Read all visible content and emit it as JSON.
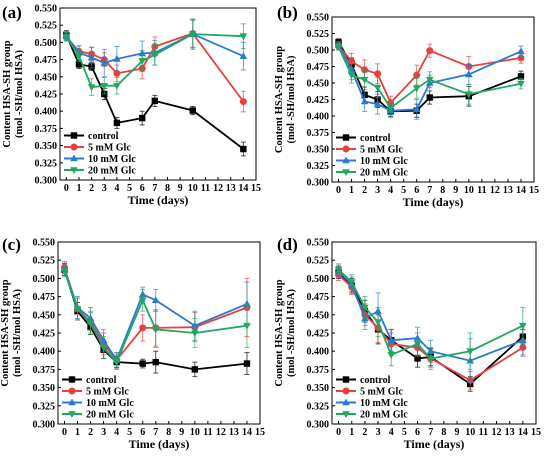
{
  "figure": {
    "background": "#ffffff"
  },
  "series_styles": {
    "control": {
      "color": "#000000",
      "marker": "square"
    },
    "5 mM Glc": {
      "color": "#e8413c",
      "marker": "circle"
    },
    "10 mM Glc": {
      "color": "#2a7ad1",
      "marker": "triangle-up"
    },
    "20 mM Glc": {
      "color": "#1fa85f",
      "marker": "triangle-down"
    }
  },
  "chart_data": [
    {
      "panel_label": "(a)",
      "type": "line",
      "xlabel": "Time (days)",
      "ylabel_lines": [
        "Content HSA-SH group",
        "(mol -SH/mol HSA)"
      ],
      "xlim": [
        -0.5,
        15
      ],
      "ylim": [
        0.3,
        0.55
      ],
      "xticks": [
        0,
        1,
        2,
        3,
        4,
        5,
        6,
        7,
        8,
        9,
        10,
        11,
        12,
        13,
        14,
        15
      ],
      "yticks": [
        0.3,
        0.325,
        0.35,
        0.375,
        0.4,
        0.425,
        0.45,
        0.475,
        0.5,
        0.525,
        0.55
      ],
      "ytick_labels": [
        "0.300",
        "0.325",
        "0.350",
        "0.375",
        "0.400",
        "0.425",
        "0.450",
        "0.475",
        "0.500",
        "0.525",
        "0.550"
      ],
      "legend": [
        "control",
        "5 mM Glc",
        "10 mM Glc",
        "20 mM Glc"
      ],
      "legend_position": "bottom-left",
      "series": [
        {
          "name": "control",
          "x": [
            0,
            1,
            2,
            3,
            4,
            6,
            7,
            10,
            14
          ],
          "y": [
            0.511,
            0.468,
            0.465,
            0.425,
            0.383,
            0.39,
            0.415,
            0.401,
            0.345
          ],
          "err": [
            0.006,
            0.006,
            0.006,
            0.008,
            0.008,
            0.01,
            0.008,
            0.006,
            0.01
          ]
        },
        {
          "name": "5 mM Glc",
          "x": [
            0,
            1,
            2,
            3,
            4,
            6,
            7,
            10,
            14
          ],
          "y": [
            0.508,
            0.487,
            0.483,
            0.475,
            0.455,
            0.462,
            0.494,
            0.513,
            0.414
          ],
          "err": [
            0.006,
            0.008,
            0.01,
            0.01,
            0.012,
            0.015,
            0.014,
            0.02,
            0.015
          ]
        },
        {
          "name": "10 mM Glc",
          "x": [
            0,
            1,
            2,
            3,
            4,
            6,
            7,
            10,
            14
          ],
          "y": [
            0.509,
            0.485,
            0.478,
            0.47,
            0.476,
            0.484,
            0.485,
            0.512,
            0.48
          ],
          "err": [
            0.006,
            0.01,
            0.015,
            0.02,
            0.018,
            0.018,
            0.018,
            0.022,
            0.02
          ]
        },
        {
          "name": "20 mM Glc",
          "x": [
            0,
            1,
            2,
            3,
            4,
            6,
            7,
            10,
            14
          ],
          "y": [
            0.508,
            0.48,
            0.435,
            0.437,
            0.437,
            0.473,
            0.482,
            0.512,
            0.509
          ],
          "err": [
            0.006,
            0.008,
            0.012,
            0.012,
            0.012,
            0.015,
            0.015,
            0.02,
            0.018
          ]
        }
      ]
    },
    {
      "panel_label": "(b)",
      "type": "line",
      "xlabel": "Time (days)",
      "ylabel_lines": [
        "Content HSA-SH group",
        "(mol -SH/mol HSA)"
      ],
      "xlim": [
        -0.5,
        15
      ],
      "ylim": [
        0.3,
        0.55
      ],
      "xticks": [
        0,
        1,
        2,
        3,
        4,
        5,
        6,
        7,
        8,
        9,
        10,
        11,
        12,
        13,
        14,
        15
      ],
      "yticks": [
        0.3,
        0.325,
        0.35,
        0.375,
        0.4,
        0.425,
        0.45,
        0.475,
        0.5,
        0.525,
        0.55
      ],
      "ytick_labels": [
        "0.300",
        "0.325",
        "0.350",
        "0.375",
        "0.400",
        "0.425",
        "0.450",
        "0.475",
        "0.500",
        "0.525",
        "0.550"
      ],
      "legend": [
        "control",
        "5 mM Glc",
        "10 mM Glc",
        "20 mM Glc"
      ],
      "legend_position": "bottom-left",
      "series": [
        {
          "name": "control",
          "x": [
            0,
            1,
            2,
            3,
            4,
            6,
            7,
            10,
            14
          ],
          "y": [
            0.512,
            0.478,
            0.432,
            0.425,
            0.407,
            0.408,
            0.428,
            0.43,
            0.46
          ],
          "err": [
            0.005,
            0.01,
            0.012,
            0.012,
            0.008,
            0.01,
            0.01,
            0.015,
            0.008
          ]
        },
        {
          "name": "5 mM Glc",
          "x": [
            0,
            1,
            2,
            3,
            4,
            6,
            7,
            10,
            14
          ],
          "y": [
            0.506,
            0.483,
            0.47,
            0.464,
            0.42,
            0.462,
            0.499,
            0.475,
            0.488
          ],
          "err": [
            0.005,
            0.012,
            0.015,
            0.015,
            0.01,
            0.015,
            0.01,
            0.015,
            0.008
          ]
        },
        {
          "name": "10 mM Glc",
          "x": [
            0,
            1,
            2,
            3,
            4,
            6,
            7,
            10,
            14
          ],
          "y": [
            0.508,
            0.47,
            0.422,
            0.418,
            0.408,
            0.41,
            0.45,
            0.463,
            0.498
          ],
          "err": [
            0.005,
            0.015,
            0.015,
            0.015,
            0.01,
            0.015,
            0.012,
            0.015,
            0.008
          ]
        },
        {
          "name": "20 mM Glc",
          "x": [
            0,
            1,
            2,
            3,
            4,
            6,
            7,
            10,
            14
          ],
          "y": [
            0.505,
            0.462,
            0.455,
            0.443,
            0.412,
            0.442,
            0.455,
            0.433,
            0.449
          ],
          "err": [
            0.005,
            0.012,
            0.015,
            0.015,
            0.01,
            0.015,
            0.012,
            0.015,
            0.008
          ]
        }
      ]
    },
    {
      "panel_label": "(c)",
      "type": "line",
      "xlabel": "Time (days)",
      "ylabel_lines": [
        "Content HSA-SH group",
        "(mol -SH/mol HSA)"
      ],
      "xlim": [
        -0.5,
        15
      ],
      "ylim": [
        0.3,
        0.55
      ],
      "xticks": [
        0,
        1,
        2,
        3,
        4,
        5,
        6,
        7,
        8,
        9,
        10,
        11,
        12,
        13,
        14,
        15
      ],
      "yticks": [
        0.3,
        0.325,
        0.35,
        0.375,
        0.4,
        0.425,
        0.45,
        0.475,
        0.5,
        0.525,
        0.55
      ],
      "ytick_labels": [
        "0.300",
        "0.325",
        "0.350",
        "0.375",
        "0.400",
        "0.425",
        "0.450",
        "0.475",
        "0.500",
        "0.525",
        "0.550"
      ],
      "legend": [
        "control",
        "5 mM Glc",
        "10 mM Glc",
        "20 mM Glc"
      ],
      "legend_position": "bottom-left",
      "series": [
        {
          "name": "control",
          "x": [
            0,
            1,
            2,
            3,
            4,
            6,
            7,
            10,
            14
          ],
          "y": [
            0.512,
            0.455,
            0.433,
            0.402,
            0.385,
            0.383,
            0.385,
            0.375,
            0.383
          ],
          "err": [
            0.008,
            0.012,
            0.01,
            0.012,
            0.008,
            0.006,
            0.015,
            0.01,
            0.015
          ]
        },
        {
          "name": "5 mM Glc",
          "x": [
            0,
            1,
            2,
            3,
            4,
            6,
            7,
            10,
            14
          ],
          "y": [
            0.515,
            0.458,
            0.44,
            0.41,
            0.388,
            0.432,
            0.432,
            0.433,
            0.46
          ],
          "err": [
            0.008,
            0.015,
            0.015,
            0.015,
            0.01,
            0.018,
            0.025,
            0.02,
            0.04
          ]
        },
        {
          "name": "10 mM Glc",
          "x": [
            0,
            1,
            2,
            3,
            4,
            6,
            7,
            10,
            14
          ],
          "y": [
            0.513,
            0.46,
            0.445,
            0.415,
            0.388,
            0.478,
            0.47,
            0.435,
            0.465
          ],
          "err": [
            0.008,
            0.015,
            0.015,
            0.015,
            0.01,
            0.01,
            0.015,
            0.02,
            0.03
          ]
        },
        {
          "name": "20 mM Glc",
          "x": [
            0,
            1,
            2,
            3,
            4,
            6,
            7,
            10,
            14
          ],
          "y": [
            0.51,
            0.458,
            0.438,
            0.405,
            0.385,
            0.47,
            0.43,
            0.425,
            0.435
          ],
          "err": [
            0.008,
            0.015,
            0.015,
            0.015,
            0.01,
            0.015,
            0.025,
            0.02,
            0.03
          ]
        }
      ]
    },
    {
      "panel_label": "(d)",
      "type": "line",
      "xlabel": "Time (days)",
      "ylabel_lines": [
        "Content HSA-SH group",
        "(mol -SH/mol HSA)"
      ],
      "xlim": [
        -0.5,
        15
      ],
      "ylim": [
        0.3,
        0.55
      ],
      "xticks": [
        0,
        1,
        2,
        3,
        4,
        5,
        6,
        7,
        8,
        9,
        10,
        11,
        12,
        13,
        14,
        15
      ],
      "yticks": [
        0.3,
        0.325,
        0.35,
        0.375,
        0.4,
        0.425,
        0.45,
        0.475,
        0.5,
        0.525,
        0.55
      ],
      "ytick_labels": [
        "0.300",
        "0.325",
        "0.350",
        "0.375",
        "0.400",
        "0.425",
        "0.450",
        "0.475",
        "0.500",
        "0.525",
        "0.550"
      ],
      "legend": [
        "control",
        "5 mM Glc",
        "10 mM Glc",
        "20 mM Glc"
      ],
      "legend_position": "bottom-left",
      "series": [
        {
          "name": "control",
          "x": [
            0,
            1,
            2,
            3,
            4,
            6,
            7,
            10,
            14
          ],
          "y": [
            0.508,
            0.49,
            0.455,
            0.43,
            0.415,
            0.39,
            0.392,
            0.355,
            0.42
          ],
          "err": [
            0.008,
            0.01,
            0.015,
            0.02,
            0.015,
            0.012,
            0.012,
            0.01,
            0.01
          ]
        },
        {
          "name": "5 mM Glc",
          "x": [
            0,
            1,
            2,
            3,
            4,
            6,
            7,
            10,
            14
          ],
          "y": [
            0.505,
            0.488,
            0.45,
            0.432,
            0.41,
            0.405,
            0.39,
            0.36,
            0.405
          ],
          "err": [
            0.008,
            0.01,
            0.015,
            0.02,
            0.015,
            0.012,
            0.012,
            0.012,
            0.012
          ]
        },
        {
          "name": "10 mM Glc",
          "x": [
            0,
            1,
            2,
            3,
            4,
            6,
            7,
            10,
            14
          ],
          "y": [
            0.51,
            0.492,
            0.445,
            0.455,
            0.415,
            0.418,
            0.4,
            0.387,
            0.415
          ],
          "err": [
            0.008,
            0.01,
            0.015,
            0.025,
            0.015,
            0.015,
            0.015,
            0.03,
            0.02
          ]
        },
        {
          "name": "20 mM Glc",
          "x": [
            0,
            1,
            2,
            3,
            4,
            6,
            7,
            10,
            14
          ],
          "y": [
            0.512,
            0.495,
            0.46,
            0.44,
            0.395,
            0.41,
            0.39,
            0.4,
            0.435
          ],
          "err": [
            0.008,
            0.01,
            0.015,
            0.02,
            0.015,
            0.015,
            0.015,
            0.025,
            0.025
          ]
        }
      ]
    }
  ]
}
